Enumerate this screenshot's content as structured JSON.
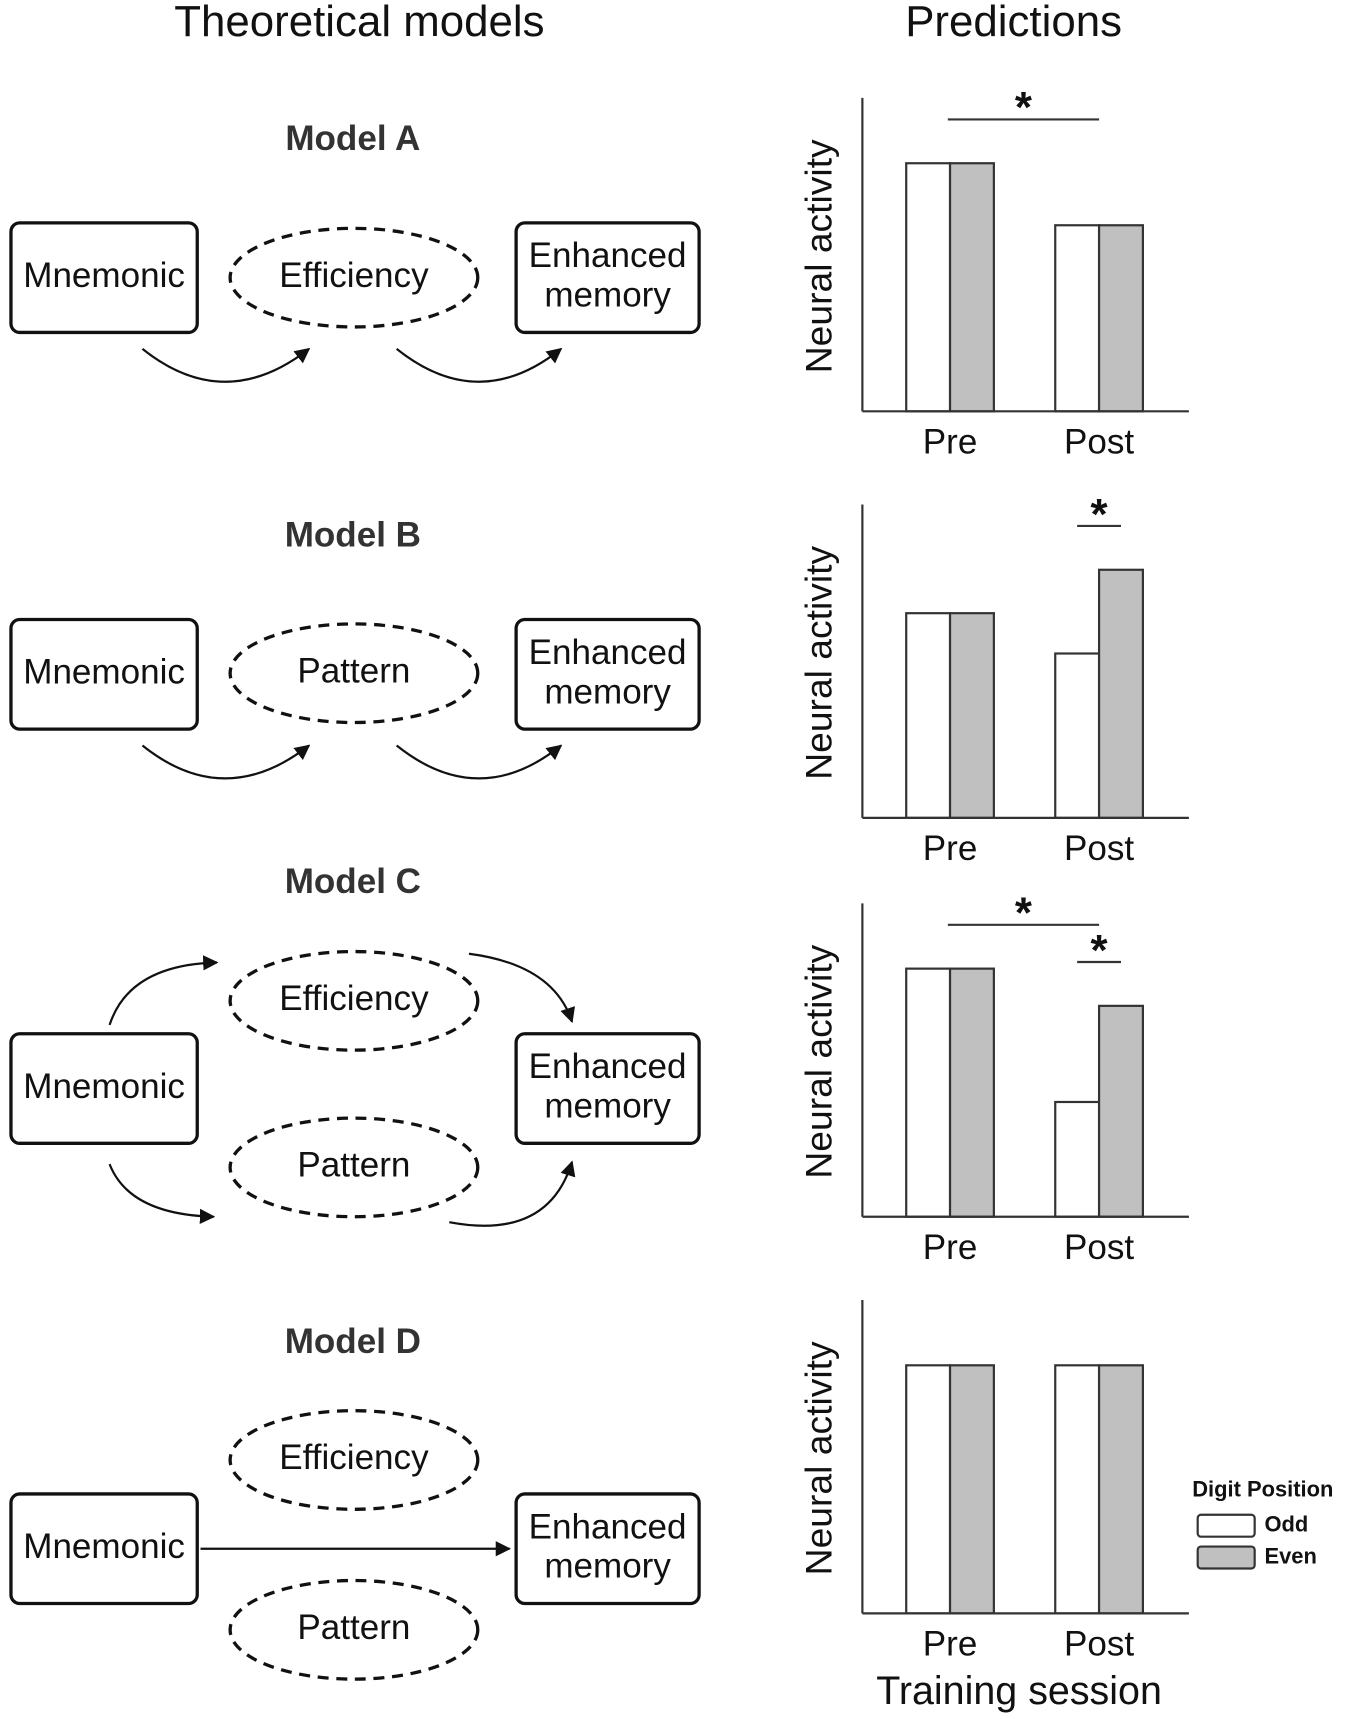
{
  "headers": {
    "left": "Theoretical models",
    "right": "Predictions"
  },
  "models": [
    {
      "title": "Model A",
      "nodes": [
        {
          "lines": [
            "Mnemonic"
          ]
        },
        {
          "lines": [
            "Efficiency"
          ]
        },
        {
          "lines": [
            "Enhanced",
            "memory"
          ]
        }
      ]
    },
    {
      "title": "Model B",
      "nodes": [
        {
          "lines": [
            "Mnemonic"
          ]
        },
        {
          "lines": [
            "Pattern"
          ]
        },
        {
          "lines": [
            "Enhanced",
            "memory"
          ]
        }
      ]
    },
    {
      "title": "Model C",
      "nodes": [
        {
          "lines": [
            "Mnemonic"
          ]
        },
        {
          "lines": [
            "Efficiency"
          ]
        },
        {
          "lines": [
            "Pattern"
          ]
        },
        {
          "lines": [
            "Enhanced",
            "memory"
          ]
        }
      ]
    },
    {
      "title": "Model D",
      "nodes": [
        {
          "lines": [
            "Mnemonic"
          ]
        },
        {
          "lines": [
            "Efficiency"
          ]
        },
        {
          "lines": [
            "Pattern"
          ]
        },
        {
          "lines": [
            "Enhanced",
            "memory"
          ]
        }
      ]
    }
  ],
  "chart_data": [
    {
      "type": "bar",
      "y_label": "Neural activity",
      "categories": [
        "Pre",
        "Post"
      ],
      "ylim": [
        0,
        10
      ],
      "series": [
        {
          "name": "Odd",
          "color": "#ffffff",
          "values": [
            8.0,
            6.0
          ]
        },
        {
          "name": "Even",
          "color": "#c0c0c0",
          "values": [
            8.0,
            6.0
          ]
        }
      ],
      "annotations": [
        {
          "label": "*",
          "categories": [
            "Pre",
            "Post"
          ]
        }
      ]
    },
    {
      "type": "bar",
      "y_label": "Neural activity",
      "categories": [
        "Pre",
        "Post"
      ],
      "ylim": [
        0,
        10
      ],
      "series": [
        {
          "name": "Odd",
          "color": "#ffffff",
          "values": [
            6.6,
            5.3
          ]
        },
        {
          "name": "Even",
          "color": "#c0c0c0",
          "values": [
            6.6,
            8.0
          ]
        }
      ],
      "annotations": [
        {
          "label": "*",
          "categories": [
            "Post"
          ]
        }
      ]
    },
    {
      "type": "bar",
      "y_label": "Neural activity",
      "categories": [
        "Pre",
        "Post"
      ],
      "ylim": [
        0,
        10
      ],
      "series": [
        {
          "name": "Odd",
          "color": "#ffffff",
          "values": [
            8.0,
            3.7
          ]
        },
        {
          "name": "Even",
          "color": "#c0c0c0",
          "values": [
            8.0,
            6.8
          ]
        }
      ],
      "annotations": [
        {
          "label": "*",
          "categories": [
            "Pre",
            "Post"
          ]
        },
        {
          "label": "*",
          "categories": [
            "Post"
          ]
        }
      ]
    },
    {
      "type": "bar",
      "y_label": "Neural activity",
      "x_label": "Training session",
      "categories": [
        "Pre",
        "Post"
      ],
      "ylim": [
        0,
        10
      ],
      "series": [
        {
          "name": "Odd",
          "color": "#ffffff",
          "values": [
            8.0,
            8.0
          ]
        },
        {
          "name": "Even",
          "color": "#c0c0c0",
          "values": [
            8.0,
            8.0
          ]
        }
      ],
      "legend": "right",
      "legend_title": "Digit Position"
    }
  ]
}
